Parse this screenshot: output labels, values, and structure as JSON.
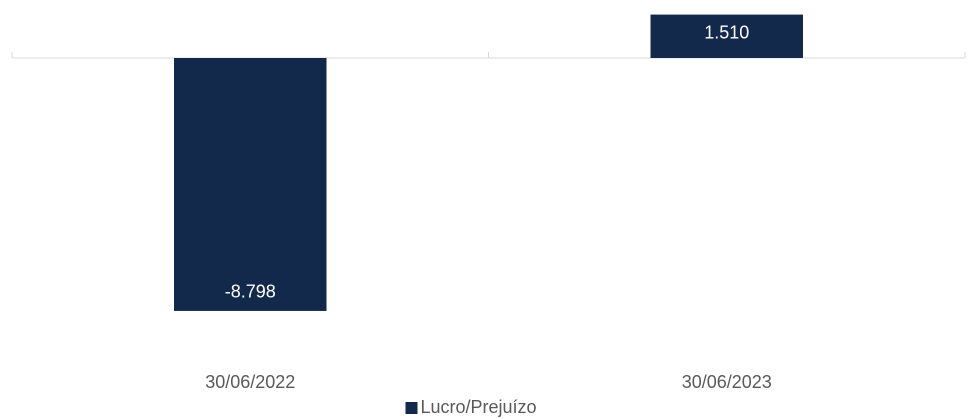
{
  "chart_data": {
    "type": "bar",
    "categories": [
      "30/06/2022",
      "30/06/2023"
    ],
    "series": [
      {
        "name": "Lucro/Prejuízo",
        "color": "#13294b",
        "values": [
          -8798,
          1510
        ],
        "value_labels": [
          "-8.798",
          "1.510"
        ]
      }
    ],
    "ylim": [
      -9000,
      1600
    ],
    "legend": "bottom"
  }
}
